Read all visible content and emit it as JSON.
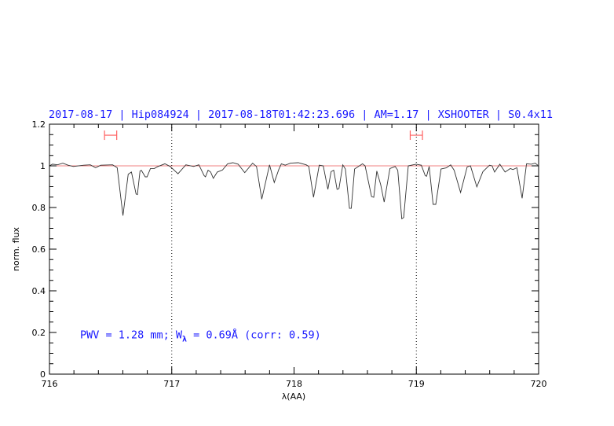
{
  "chart_data": {
    "type": "line",
    "title": "2017-08-17  |  Hip084924  |  2017-08-18T01:42:23.696  |  AM=1.17  |  XSHOOTER  |  S0.4x11",
    "xlabel": "λ(AA)",
    "ylabel": "norm. flux",
    "xlim": [
      716,
      720
    ],
    "ylim": [
      0,
      1.2
    ],
    "x_ticks": [
      "716",
      "717",
      "718",
      "719",
      "720"
    ],
    "y_ticks": [
      "0",
      "0.2",
      "0.4",
      "0.6",
      "0.8",
      "1",
      "1.2"
    ],
    "x_minor_step": 0.2,
    "y_minor_step": 0.05,
    "grid": false,
    "reference_line": {
      "y": 1.0,
      "color": "#f08080"
    },
    "vertical_markers": [
      717,
      719
    ],
    "error_bars": [
      {
        "x0": 716.45,
        "x1": 716.55,
        "y": 1.147,
        "color": "#ff6060"
      },
      {
        "x0": 718.95,
        "x1": 719.05,
        "y": 1.147,
        "color": "#ff6060"
      }
    ],
    "annotation": {
      "x": 716.25,
      "y": 0.19,
      "text_main": "PWV = 1.28 mm; W",
      "text_sub": "λ",
      "text_rest": " = 0.69Å (corr: 0.59)",
      "color": "#1a1aff"
    },
    "series": [
      {
        "name": "spectrum",
        "color": "#333333",
        "x": [
          716.0,
          716.024,
          716.066,
          716.109,
          716.152,
          716.195,
          716.28,
          716.334,
          716.377,
          716.419,
          716.516,
          716.554,
          716.601,
          716.644,
          716.67,
          716.708,
          716.719,
          716.74,
          716.751,
          716.783,
          716.798,
          716.826,
          716.858,
          716.88,
          716.944,
          716.987,
          717.051,
          717.115,
          717.179,
          717.222,
          717.265,
          717.276,
          717.297,
          717.318,
          717.34,
          717.372,
          717.415,
          717.457,
          717.5,
          717.543,
          717.597,
          717.629,
          717.661,
          717.693,
          717.736,
          717.8,
          717.838,
          717.875,
          717.896,
          717.928,
          717.971,
          718.035,
          718.099,
          718.121,
          718.159,
          718.206,
          718.239,
          718.277,
          718.303,
          718.324,
          718.352,
          718.367,
          718.399,
          718.42,
          718.453,
          718.468,
          718.495,
          718.56,
          718.581,
          718.634,
          718.652,
          718.677,
          718.709,
          718.737,
          718.784,
          718.827,
          718.848,
          718.881,
          718.896,
          718.934,
          718.998,
          719.041,
          719.073,
          719.084,
          719.105,
          719.137,
          719.159,
          719.202,
          719.244,
          719.281,
          719.309,
          719.362,
          719.416,
          719.443,
          719.495,
          719.544,
          719.598,
          719.619,
          719.64,
          719.683,
          719.726,
          719.769,
          719.79,
          719.822,
          719.865,
          719.901,
          719.94,
          719.972,
          719.993
        ],
        "y": [
          1.0,
          1.008,
          1.005,
          1.013,
          1.003,
          0.997,
          1.003,
          1.005,
          0.991,
          1.003,
          1.005,
          0.991,
          0.761,
          0.96,
          0.97,
          0.865,
          0.862,
          0.975,
          0.979,
          0.947,
          0.947,
          0.987,
          0.987,
          0.995,
          1.01,
          0.997,
          0.962,
          1.005,
          0.997,
          1.005,
          0.953,
          0.947,
          0.979,
          0.97,
          0.94,
          0.97,
          0.98,
          1.01,
          1.015,
          1.008,
          0.967,
          0.99,
          1.013,
          0.997,
          0.84,
          1.005,
          0.92,
          0.982,
          1.01,
          1.003,
          1.013,
          1.015,
          1.005,
          0.997,
          0.849,
          1.003,
          1.0,
          0.887,
          0.972,
          0.979,
          0.887,
          0.891,
          1.005,
          0.985,
          0.796,
          0.796,
          0.985,
          1.01,
          1.0,
          0.853,
          0.849,
          0.975,
          0.909,
          0.826,
          0.987,
          0.997,
          0.979,
          0.746,
          0.752,
          1.0,
          1.008,
          1.003,
          0.953,
          0.95,
          0.997,
          0.815,
          0.815,
          0.985,
          0.99,
          1.005,
          0.979,
          0.872,
          0.995,
          1.0,
          0.899,
          0.972,
          1.003,
          1.0,
          0.97,
          1.008,
          0.97,
          0.987,
          0.982,
          0.991,
          0.844,
          1.01,
          1.008,
          1.013,
          1.003
        ]
      }
    ]
  }
}
